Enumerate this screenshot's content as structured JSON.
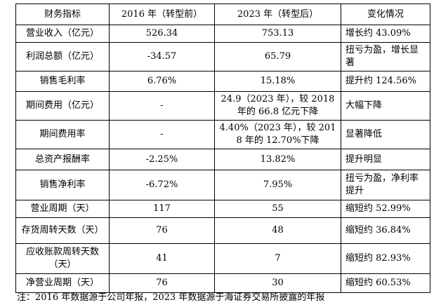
{
  "table": {
    "header": [
      "财务指标",
      "2016 年（转型前）",
      "2023 年（转型后）",
      "变化情况"
    ],
    "rows": [
      [
        "营业收入（亿元）",
        "526.34",
        "753.13",
        "增长约 43.09%"
      ],
      [
        "利润总额（亿元）",
        "-34.57",
        "65.79",
        "扭亏为盈，增长显著"
      ],
      [
        "销售毛利率",
        "6.76%",
        "15.18%",
        "提升约 124.56%"
      ],
      [
        "期间费用（亿元）",
        "-",
        "24.9（2023 年），较 2018 年的 66.8 亿元下降",
        "大幅下降"
      ],
      [
        "期间费用率",
        "-",
        "4.40%（2023 年），较 2018 年的 12.70%下降",
        "显著降低"
      ],
      [
        "总资产报酬率",
        "-2.25%",
        "13.82%",
        "提升明显"
      ],
      [
        "销售净利率",
        "-6.72%",
        "7.95%",
        "扭亏为盈，净利率提升"
      ],
      [
        "营业周期（天）",
        "117",
        "55",
        "缩短约 52.99%"
      ],
      [
        "存货周转天数（天）",
        "76",
        "48",
        "缩短约 36.84%"
      ],
      [
        "应收账款周转天数（天）",
        "41",
        "7",
        "缩短约 82.93%"
      ],
      [
        "净营业周期（天）",
        "76",
        "30",
        "缩短约 60.53%"
      ]
    ]
  },
  "note": "注：2016 年数据源于公司年报，2023 年数据源于海证券交易所披露的年报"
}
